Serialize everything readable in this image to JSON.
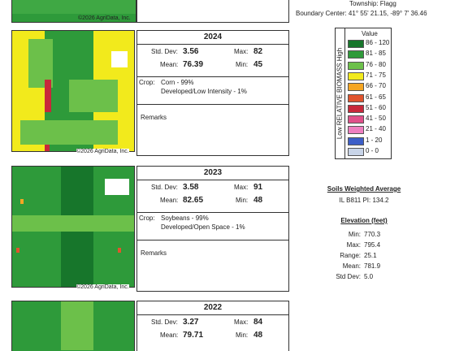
{
  "header": {
    "township": "Township: Flagg",
    "boundary_center": "Boundary Center: 41° 55' 21.15, -89° 7' 36.46"
  },
  "map_credit": "©2026 AgriData, Inc.",
  "years": [
    {
      "year": "2024",
      "std_dev_label": "Std. Dev:",
      "std_dev": "3.56",
      "max_label": "Max:",
      "max": "82",
      "mean_label": "Mean:",
      "mean": "76.39",
      "min_label": "Min:",
      "min": "45",
      "crop_label": "Crop:",
      "crops": [
        "Corn - 99%",
        "Developed/Low Intensity - 1%"
      ],
      "remarks_label": "Remarks"
    },
    {
      "year": "2023",
      "std_dev_label": "Std. Dev:",
      "std_dev": "3.58",
      "max_label": "Max:",
      "max": "91",
      "mean_label": "Mean:",
      "mean": "82.65",
      "min_label": "Min:",
      "min": "48",
      "crop_label": "Crop:",
      "crops": [
        "Soybeans - 99%",
        "Developed/Open Space - 1%"
      ],
      "remarks_label": "Remarks"
    },
    {
      "year": "2022",
      "std_dev_label": "Std. Dev:",
      "std_dev": "3.27",
      "max_label": "Max:",
      "max": "84",
      "mean_label": "Mean:",
      "mean": "79.71",
      "min_label": "Min:",
      "min": "48"
    }
  ],
  "legend": {
    "axis_label": "Low RELATIVE BIOMASS High",
    "header": "Value",
    "rows": [
      {
        "range": "86 - 120",
        "color": "#17762b"
      },
      {
        "range": "81 - 85",
        "color": "#2f9a3a"
      },
      {
        "range": "76 - 80",
        "color": "#6cc04a"
      },
      {
        "range": "71 - 75",
        "color": "#f2ea1c"
      },
      {
        "range": "66 - 70",
        "color": "#f5a623"
      },
      {
        "range": "61 - 65",
        "color": "#e0542d"
      },
      {
        "range": "51 - 60",
        "color": "#c8283a"
      },
      {
        "range": "41 - 50",
        "color": "#e0508a"
      },
      {
        "range": "21 - 40",
        "color": "#ee7fc0"
      },
      {
        "range": "1 - 20",
        "color": "#3c5ec8"
      },
      {
        "range": "0 - 0",
        "color": "#c8d4e8"
      }
    ]
  },
  "soils": {
    "title": "Soils Weighted Average",
    "value": "IL B811 PI: 134.2"
  },
  "elevation": {
    "title": "Elevation (feet)",
    "rows": [
      {
        "label": "Min:",
        "value": "770.3"
      },
      {
        "label": "Max:",
        "value": "795.4"
      },
      {
        "label": "Range:",
        "value": "25.1"
      },
      {
        "label": "Mean:",
        "value": "781.9"
      },
      {
        "label": "Std Dev:",
        "value": "5.0"
      }
    ]
  }
}
